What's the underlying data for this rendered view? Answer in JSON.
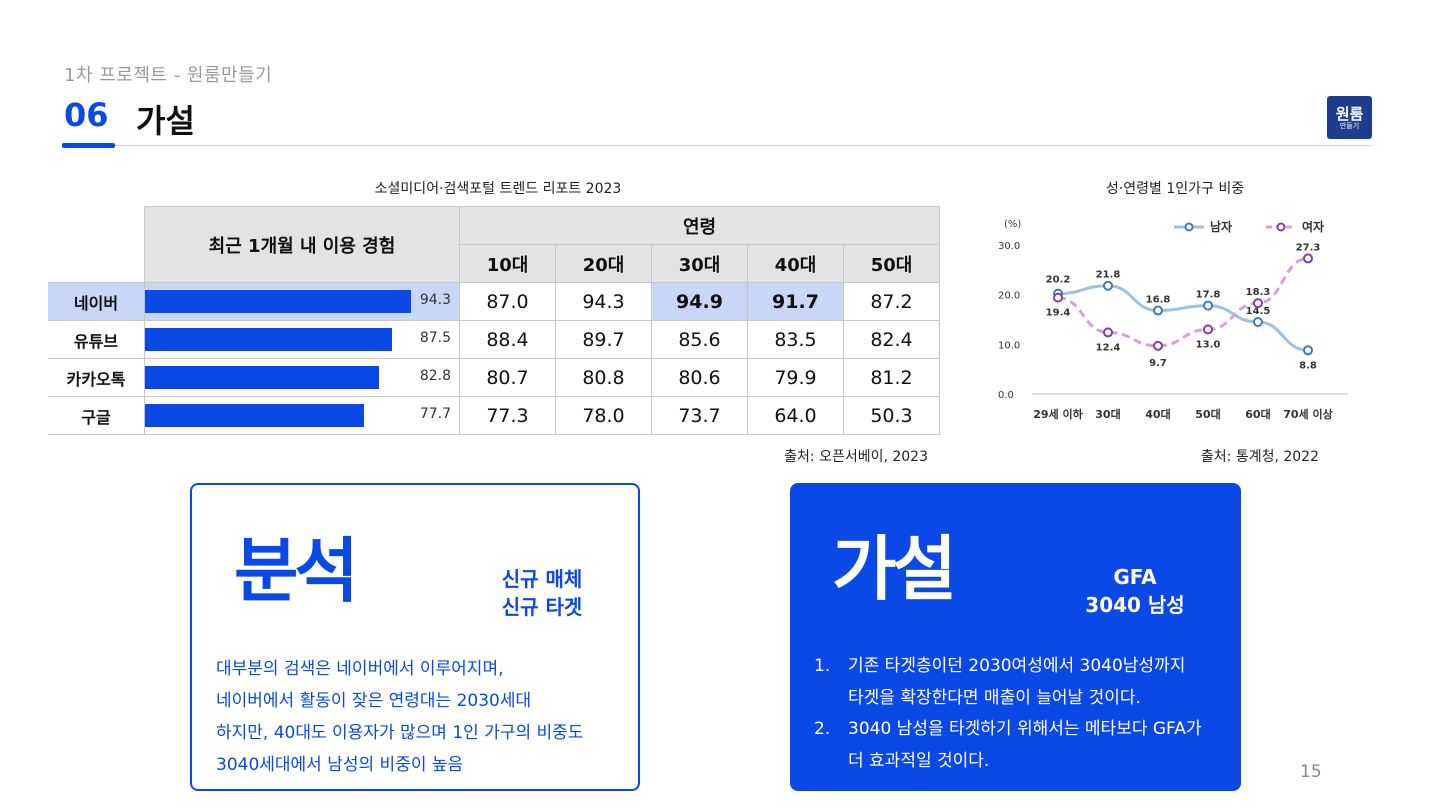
{
  "header": {
    "subtitle": "1차 프로젝트 - 원룸만들기",
    "section_number": "06",
    "section_title": "가설",
    "logo_line1": "원룸",
    "logo_line2": "만들기"
  },
  "table": {
    "title": "소셜미디어·검색포털 트렌드 리포트 2023",
    "usage_header": "최근 1개월 내 이용 경험",
    "age_header": "연령",
    "age_columns": [
      "10대",
      "20대",
      "30대",
      "40대",
      "50대"
    ],
    "rows": [
      {
        "label": "네이버",
        "usage": 94.3,
        "usage_text": "94.3",
        "values": [
          "87.0",
          "94.3",
          "94.9",
          "91.7",
          "87.2"
        ]
      },
      {
        "label": "유튜브",
        "usage": 87.5,
        "usage_text": "87.5",
        "values": [
          "88.4",
          "89.7",
          "85.6",
          "83.5",
          "82.4"
        ]
      },
      {
        "label": "카카오톡",
        "usage": 82.8,
        "usage_text": "82.8",
        "values": [
          "80.7",
          "80.8",
          "80.6",
          "79.9",
          "81.2"
        ]
      },
      {
        "label": "구글",
        "usage": 77.7,
        "usage_text": "77.7",
        "values": [
          "77.3",
          "78.0",
          "73.7",
          "64.0",
          "50.3"
        ]
      }
    ],
    "highlight_row": 0,
    "highlight_cols": [
      2,
      3
    ],
    "source": "출처: 오픈서베이, 2023"
  },
  "chart_data": {
    "type": "line",
    "title": "성·연령별 1인가구 비중",
    "ylabel": "(%)",
    "categories": [
      "29세 이하",
      "30대",
      "40대",
      "50대",
      "60대",
      "70세 이상"
    ],
    "ylim": [
      0,
      30
    ],
    "yticks": [
      "0.0",
      "10.0",
      "20.0",
      "30.0"
    ],
    "legend_position": "top-right",
    "series": [
      {
        "name": "남자",
        "values": [
          20.2,
          21.8,
          16.8,
          17.8,
          14.5,
          8.8
        ],
        "labels": [
          "20.2",
          "21.8",
          "16.8",
          "17.8",
          "14.5",
          "8.8"
        ],
        "color": "#9cc2e3",
        "marker": "#3a7cc0",
        "dashed": false
      },
      {
        "name": "여자",
        "values": [
          19.4,
          12.4,
          9.7,
          13.0,
          18.3,
          27.3
        ],
        "labels": [
          "19.4",
          "12.4",
          "9.7",
          "13.0",
          "18.3",
          "27.3"
        ],
        "color": "#d99ee0",
        "marker": "#8a3aa8",
        "dashed": true
      }
    ],
    "source": "출처: 통계청, 2022"
  },
  "analysis": {
    "title": "분석",
    "tag1": "신규 매체",
    "tag2": "신규 타겟",
    "lines": [
      "대부분의 검색은 네이버에서 이루어지며,",
      "네이버에서 활동이 잦은 연령대는 2030세대",
      "하지만, 40대도 이용자가 많으며 1인 가구의 비중도",
      "3040세대에서 남성의 비중이 높음"
    ]
  },
  "hypothesis": {
    "title": "가설",
    "tag1": "GFA",
    "tag2": "3040 남성",
    "items": [
      {
        "index": "1.",
        "line1": "기존 타겟층이던 2030여성에서 3040남성까지",
        "line2": "타겟을 확장한다면 매출이 늘어날 것이다."
      },
      {
        "index": "2.",
        "line1": "3040 남성을 타겟하기 위해서는 메타보다 GFA가",
        "line2": "더 효과적일 것이다."
      }
    ]
  },
  "page_number": "15",
  "colors": {
    "accent": "#0a49e6",
    "highlight": "#c9d7f7",
    "header_gray": "#e3e3e3"
  }
}
